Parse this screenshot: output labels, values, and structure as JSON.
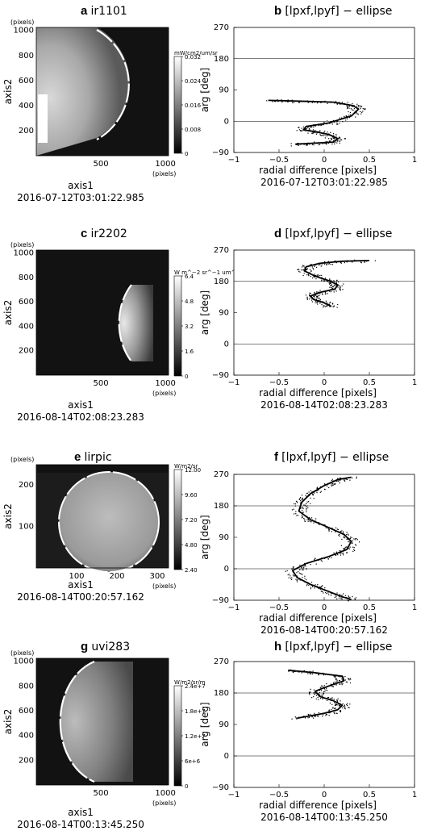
{
  "chart_data": [
    {
      "type": "heatmap",
      "panel_label": "a",
      "title": "ir1101",
      "xlabel": "axis1",
      "ylabel": "axis2",
      "x_unit": "(pixels)",
      "y_unit": "(pixels)",
      "x_ticks": [
        "500",
        "1000"
      ],
      "y_ticks": [
        "200",
        "400",
        "600",
        "800",
        "1000"
      ],
      "xlim": [
        0,
        1024
      ],
      "ylim": [
        0,
        1024
      ],
      "colorbar": {
        "label": "mW/cm2/um/sr",
        "ticks": [
          "0",
          "0.008",
          "0.016",
          "0.024",
          "0.032"
        ],
        "range": [
          0,
          0.032
        ]
      },
      "date": "2016-07-12T03:01:22.985"
    },
    {
      "type": "scatter",
      "panel_label": "b",
      "title": "[lpxf,lpyf] − ellipse",
      "xlabel": "radial difference [pixels]",
      "ylabel": "arg [deg]",
      "xlim": [
        -1,
        1
      ],
      "ylim": [
        -90,
        270
      ],
      "x_ticks": [
        "−1",
        "−0.5",
        "0",
        "0.5",
        "1"
      ],
      "y_ticks": [
        "−90",
        "0",
        "90",
        "180",
        "270"
      ],
      "ref_lines": [
        0,
        180
      ],
      "curve": [
        [
          -0.62,
          60
        ],
        [
          -0.3,
          58
        ],
        [
          0.1,
          55
        ],
        [
          0.32,
          45
        ],
        [
          0.38,
          35
        ],
        [
          0.3,
          15
        ],
        [
          0.05,
          -5
        ],
        [
          -0.2,
          -15
        ],
        [
          -0.23,
          -25
        ],
        [
          -0.1,
          -30
        ],
        [
          0.05,
          -38
        ],
        [
          0.15,
          -50
        ],
        [
          0.1,
          -60
        ],
        [
          -0.1,
          -63
        ],
        [
          -0.32,
          -66
        ]
      ],
      "date": "2016-07-12T03:01:22.985"
    },
    {
      "type": "heatmap",
      "panel_label": "c",
      "title": "ir2202",
      "xlabel": "axis1",
      "ylabel": "axis2",
      "x_unit": "(pixels)",
      "y_unit": "(pixels)",
      "x_ticks": [
        "500",
        "1000"
      ],
      "y_ticks": [
        "200",
        "400",
        "600",
        "800",
        "1000"
      ],
      "xlim": [
        0,
        1024
      ],
      "ylim": [
        0,
        1024
      ],
      "colorbar": {
        "label": "W m^−2 sr^−1 um^−1",
        "ticks": [
          "0",
          "1.6",
          "3.2",
          "4.8",
          "6.4"
        ],
        "range": [
          0,
          6.4
        ]
      },
      "date": "2016-08-14T02:08:23.283"
    },
    {
      "type": "scatter",
      "panel_label": "d",
      "title": "[lpxf,lpyf] − ellipse",
      "xlabel": "radial difference [pixels]",
      "ylabel": "arg [deg]",
      "xlim": [
        -1,
        1
      ],
      "ylim": [
        -90,
        270
      ],
      "x_ticks": [
        "−1",
        "−0.5",
        "0",
        "0.5",
        "1"
      ],
      "y_ticks": [
        "−90",
        "0",
        "90",
        "180",
        "270"
      ],
      "ref_lines": [
        0,
        180
      ],
      "curve": [
        [
          0.5,
          240
        ],
        [
          0.2,
          238
        ],
        [
          -0.05,
          232
        ],
        [
          -0.2,
          222
        ],
        [
          -0.22,
          210
        ],
        [
          -0.1,
          195
        ],
        [
          0.05,
          182
        ],
        [
          0.15,
          170
        ],
        [
          0.12,
          158
        ],
        [
          -0.05,
          148
        ],
        [
          -0.15,
          138
        ],
        [
          -0.12,
          128
        ],
        [
          0.0,
          118
        ],
        [
          0.08,
          108
        ]
      ],
      "date": "2016-08-14T02:08:23.283"
    },
    {
      "type": "heatmap",
      "panel_label": "e",
      "title": "lirpic",
      "xlabel": "axis1",
      "ylabel": "axis2",
      "x_unit": "(pixels)",
      "y_unit": "(pixels)",
      "x_ticks": [
        "100",
        "200",
        "300"
      ],
      "y_ticks": [
        "100",
        "200"
      ],
      "xlim": [
        0,
        328
      ],
      "ylim": [
        0,
        248
      ],
      "colorbar": {
        "label": "W/m2/sr",
        "ticks": [
          "2.40",
          "4.80",
          "7.20",
          "9.60",
          "12.00"
        ],
        "range": [
          2.4,
          12.0
        ]
      },
      "date": "2016-08-14T00:20:57.162"
    },
    {
      "type": "scatter",
      "panel_label": "f",
      "title": "[lpxf,lpyf] − ellipse",
      "xlabel": "radial difference [pixels]",
      "ylabel": "arg [deg]",
      "xlim": [
        -1,
        1
      ],
      "ylim": [
        -90,
        270
      ],
      "x_ticks": [
        "−1",
        "−0.5",
        "0",
        "0.5",
        "1"
      ],
      "y_ticks": [
        "−90",
        "0",
        "90",
        "180",
        "270"
      ],
      "ref_lines": [
        0,
        180
      ],
      "curve": [
        [
          0.3,
          262
        ],
        [
          0.15,
          255
        ],
        [
          0.0,
          238
        ],
        [
          -0.15,
          215
        ],
        [
          -0.25,
          190
        ],
        [
          -0.28,
          165
        ],
        [
          -0.15,
          140
        ],
        [
          0.05,
          118
        ],
        [
          0.22,
          98
        ],
        [
          0.3,
          78
        ],
        [
          0.25,
          55
        ],
        [
          0.05,
          35
        ],
        [
          -0.2,
          15
        ],
        [
          -0.35,
          -5
        ],
        [
          -0.3,
          -25
        ],
        [
          -0.15,
          -45
        ],
        [
          0.05,
          -65
        ],
        [
          0.2,
          -80
        ],
        [
          0.3,
          -88
        ]
      ],
      "date": "2016-08-14T00:20:57.162"
    },
    {
      "type": "heatmap",
      "panel_label": "g",
      "title": "uvi283",
      "xlabel": "axis1",
      "ylabel": "axis2",
      "x_unit": "(pixels)",
      "y_unit": "(pixels)",
      "x_ticks": [
        "500",
        "1000"
      ],
      "y_ticks": [
        "200",
        "400",
        "600",
        "800",
        "1000"
      ],
      "xlim": [
        0,
        1024
      ],
      "ylim": [
        0,
        1024
      ],
      "colorbar": {
        "label": "W/m2/sr/m",
        "ticks": [
          "0",
          "6e+6",
          "1.2e+7",
          "1.8e+7",
          "2.4e+7"
        ],
        "range": [
          0,
          24000000.0
        ]
      },
      "date": "2016-08-14T00:13:45.250"
    },
    {
      "type": "scatter",
      "panel_label": "h",
      "title": "[lpxf,lpyf] − ellipse",
      "xlabel": "radial difference [pixels]",
      "ylabel": "arg [deg]",
      "xlim": [
        -1,
        1
      ],
      "ylim": [
        -90,
        270
      ],
      "x_ticks": [
        "−1",
        "−0.5",
        "0",
        "0.5",
        "1"
      ],
      "y_ticks": [
        "−90",
        "0",
        "90",
        "180",
        "270"
      ],
      "ref_lines": [
        0,
        180
      ],
      "curve": [
        [
          -0.4,
          245
        ],
        [
          -0.1,
          238
        ],
        [
          0.2,
          228
        ],
        [
          0.22,
          215
        ],
        [
          0.05,
          200
        ],
        [
          -0.1,
          185
        ],
        [
          -0.05,
          170
        ],
        [
          0.1,
          158
        ],
        [
          0.2,
          145
        ],
        [
          0.15,
          132
        ],
        [
          0.0,
          122
        ],
        [
          -0.15,
          115
        ],
        [
          -0.3,
          108
        ]
      ],
      "date": "2016-08-14T00:13:45.250"
    }
  ]
}
